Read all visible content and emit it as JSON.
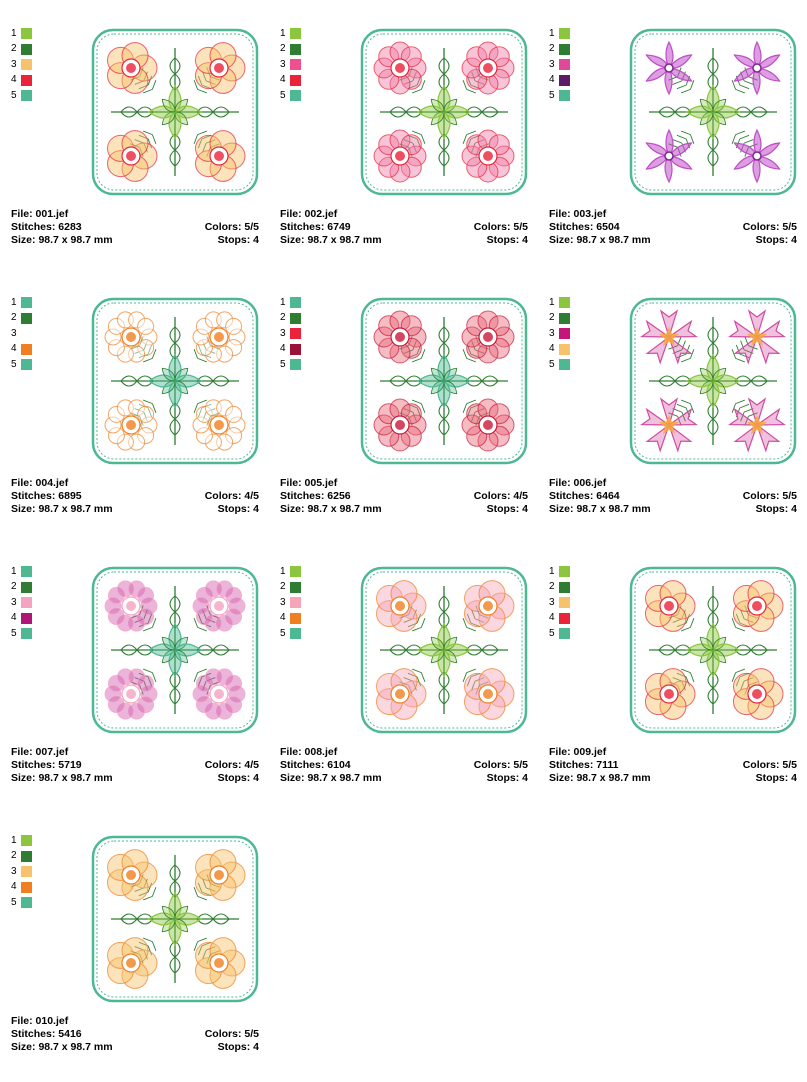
{
  "labels": {
    "file": "File:",
    "stitches": "Stitches:",
    "size": "Size:",
    "colors": "Colors:",
    "stops": "Stops:"
  },
  "designs": [
    {
      "file": "001.jef",
      "stitches": "6283",
      "size": "98.7 x 98.7 mm",
      "colors": "5/5",
      "stops": "4",
      "swatches": [
        {
          "n": "1",
          "c": "#8cc63f"
        },
        {
          "n": "2",
          "c": "#2e7d32"
        },
        {
          "n": "3",
          "c": "#f6c26b"
        },
        {
          "n": "4",
          "c": "#e8233a"
        },
        {
          "n": "5",
          "c": "#4db892"
        }
      ],
      "motif": "flower-5-petal",
      "petal_color": "#f6c26b",
      "center_color": "#e8233a",
      "leaf_color": "#8cc63f",
      "stem_color": "#2e7d32",
      "frame_color": "#4db892"
    },
    {
      "file": "002.jef",
      "stitches": "6749",
      "size": "98.7 x 98.7 mm",
      "colors": "5/5",
      "stops": "4",
      "swatches": [
        {
          "n": "1",
          "c": "#8cc63f"
        },
        {
          "n": "2",
          "c": "#2e7d32"
        },
        {
          "n": "3",
          "c": "#ef4f8f"
        },
        {
          "n": "4",
          "c": "#e8233a"
        },
        {
          "n": "5",
          "c": "#4db892"
        }
      ],
      "motif": "flower-round",
      "petal_color": "#ef7fa8",
      "center_color": "#e8233a",
      "leaf_color": "#8cc63f",
      "stem_color": "#2e7d32",
      "frame_color": "#4db892"
    },
    {
      "file": "003.jef",
      "stitches": "6504",
      "size": "98.7 x 98.7 mm",
      "colors": "5/5",
      "stops": "4",
      "swatches": [
        {
          "n": "1",
          "c": "#8cc63f"
        },
        {
          "n": "2",
          "c": "#2e7d32"
        },
        {
          "n": "3",
          "c": "#e0489c"
        },
        {
          "n": "4",
          "c": "#5c1a6b"
        },
        {
          "n": "5",
          "c": "#4db892"
        }
      ],
      "motif": "pinwheel",
      "petal_color": "#c04cc8",
      "center_color": "#7a2a8a",
      "leaf_color": "#8cc63f",
      "stem_color": "#2e7d32",
      "frame_color": "#4db892"
    },
    {
      "file": "004.jef",
      "stitches": "6895",
      "size": "98.7 x 98.7 mm",
      "colors": "4/5",
      "stops": "4",
      "swatches": [
        {
          "n": "1",
          "c": "#4db892"
        },
        {
          "n": "2",
          "c": "#2e7d32"
        },
        {
          "n": "3",
          "c": ""
        },
        {
          "n": "4",
          "c": "#f07f22"
        },
        {
          "n": "5",
          "c": "#4db892"
        }
      ],
      "motif": "flower-many-petal",
      "petal_color": "#ffffff",
      "center_color": "#f07f22",
      "leaf_color": "#4db892",
      "stem_color": "#2e7d32",
      "frame_color": "#4db892"
    },
    {
      "file": "005.jef",
      "stitches": "6256",
      "size": "98.7 x 98.7 mm",
      "colors": "4/5",
      "stops": "4",
      "swatches": [
        {
          "n": "1",
          "c": "#4db892"
        },
        {
          "n": "2",
          "c": "#2e7d32"
        },
        {
          "n": "3",
          "c": "#e8233a"
        },
        {
          "n": "4",
          "c": "#9b1238"
        },
        {
          "n": "5",
          "c": "#4db892"
        }
      ],
      "motif": "flower-round",
      "petal_color": "#e86a7a",
      "center_color": "#c8193a",
      "leaf_color": "#4db892",
      "stem_color": "#2e7d32",
      "frame_color": "#4db892"
    },
    {
      "file": "006.jef",
      "stitches": "6464",
      "size": "98.7 x 98.7 mm",
      "colors": "5/5",
      "stops": "4",
      "swatches": [
        {
          "n": "1",
          "c": "#8cc63f"
        },
        {
          "n": "2",
          "c": "#2e7d32"
        },
        {
          "n": "3",
          "c": "#c4167a"
        },
        {
          "n": "4",
          "c": "#f6c26b"
        },
        {
          "n": "5",
          "c": "#4db892"
        }
      ],
      "motif": "star-lily",
      "petal_color": "#d04ca0",
      "center_color": "#f6a83b",
      "leaf_color": "#8cc63f",
      "stem_color": "#2e7d32",
      "frame_color": "#4db892"
    },
    {
      "file": "007.jef",
      "stitches": "5719",
      "size": "98.7 x 98.7 mm",
      "colors": "4/5",
      "stops": "4",
      "swatches": [
        {
          "n": "1",
          "c": "#4db892"
        },
        {
          "n": "2",
          "c": "#2e7d32"
        },
        {
          "n": "3",
          "c": "#f4a3c0"
        },
        {
          "n": "4",
          "c": "#b0157a"
        },
        {
          "n": "5",
          "c": "#4db892"
        }
      ],
      "motif": "flower-many-petal",
      "petal_color": "#d35ab0",
      "center_color": "#f4a3c0",
      "leaf_color": "#4db892",
      "stem_color": "#2e7d32",
      "frame_color": "#4db892"
    },
    {
      "file": "008.jef",
      "stitches": "6104",
      "size": "98.7 x 98.7 mm",
      "colors": "5/5",
      "stops": "4",
      "swatches": [
        {
          "n": "1",
          "c": "#8cc63f"
        },
        {
          "n": "2",
          "c": "#2e7d32"
        },
        {
          "n": "3",
          "c": "#f7a6b8"
        },
        {
          "n": "4",
          "c": "#f07f22"
        },
        {
          "n": "5",
          "c": "#4db892"
        }
      ],
      "motif": "flower-5-petal",
      "petal_color": "#f7a6b8",
      "center_color": "#f07f22",
      "leaf_color": "#8cc63f",
      "stem_color": "#2e7d32",
      "frame_color": "#4db892"
    },
    {
      "file": "009.jef",
      "stitches": "7111",
      "size": "98.7 x 98.7 mm",
      "colors": "5/5",
      "stops": "4",
      "swatches": [
        {
          "n": "1",
          "c": "#8cc63f"
        },
        {
          "n": "2",
          "c": "#2e7d32"
        },
        {
          "n": "3",
          "c": "#f6c26b"
        },
        {
          "n": "4",
          "c": "#e8233a"
        },
        {
          "n": "5",
          "c": "#4db892"
        }
      ],
      "motif": "flower-5-petal",
      "petal_color": "#f6c26b",
      "center_color": "#e8233a",
      "leaf_color": "#8cc63f",
      "stem_color": "#2e7d32",
      "frame_color": "#4db892"
    },
    {
      "file": "010.jef",
      "stitches": "5416",
      "size": "98.7 x 98.7 mm",
      "colors": "5/5",
      "stops": "4",
      "swatches": [
        {
          "n": "1",
          "c": "#8cc63f"
        },
        {
          "n": "2",
          "c": "#2e7d32"
        },
        {
          "n": "3",
          "c": "#f6c26b"
        },
        {
          "n": "4",
          "c": "#f07f22"
        },
        {
          "n": "5",
          "c": "#4db892"
        }
      ],
      "motif": "flower-5-petal",
      "petal_color": "#f6c26b",
      "center_color": "#f07f22",
      "leaf_color": "#8cc63f",
      "stem_color": "#2e7d32",
      "frame_color": "#4db892"
    }
  ]
}
